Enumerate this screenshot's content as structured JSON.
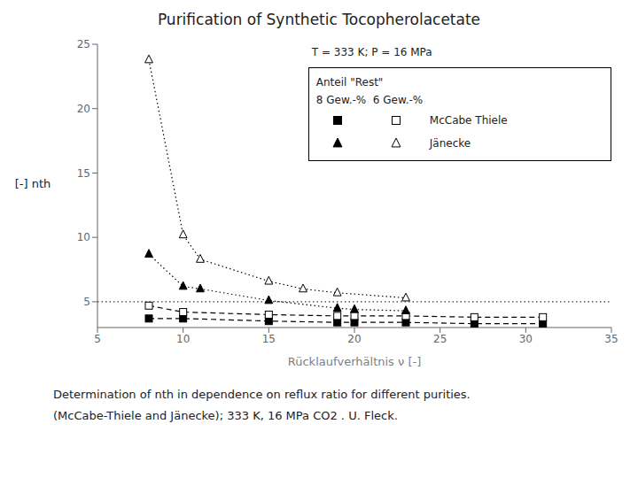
{
  "chart_data": {
    "type": "line",
    "title": "Purification of Synthetic Tocopherolacetate",
    "xlabel": "Rücklaufverhältnis  ν [-]",
    "ylabel": "[-] nth",
    "xlim": [
      5,
      35
    ],
    "xticks": [
      5,
      10,
      15,
      20,
      25,
      30,
      35
    ],
    "ylim": [
      3,
      25
    ],
    "yticks": [
      5,
      10,
      15,
      20,
      25
    ],
    "grid": false,
    "legend": "upper right",
    "legend_title": [
      "Anteil \"Rest\"",
      "8 Gew.-%  6 Gew.-%"
    ],
    "annotations": [
      "T = 333 K; P = 16 MPa"
    ],
    "caption": [
      "Determination of nth in dependence on reflux ratio for different purities.",
      "(McCabe-Thiele and Jänecke); 333 K, 16 MPa CO2 . U. Fleck."
    ],
    "hlines": [
      5.0
    ],
    "series": [
      {
        "name": "McCabe Thiele",
        "color": "black",
        "marker": "filled_square",
        "line_style": "dashed",
        "x": [
          8,
          10,
          15,
          19,
          20,
          23,
          27,
          31
        ],
        "values": [
          3.7,
          3.7,
          3.5,
          3.4,
          3.4,
          3.4,
          3.3,
          3.3
        ]
      },
      {
        "name": "McCabe Thiele",
        "color": "black",
        "marker": "open_square",
        "line_style": "dashed",
        "x": [
          8,
          10,
          15,
          19,
          20,
          23,
          27,
          31
        ],
        "values": [
          4.7,
          4.2,
          4.0,
          3.9,
          3.9,
          3.9,
          3.8,
          3.8
        ]
      },
      {
        "name": "Jänecke",
        "color": "black",
        "marker": "filled_triangle",
        "line_style": "dotted",
        "x": [
          8,
          10,
          11,
          15,
          19,
          20,
          23
        ],
        "values": [
          8.7,
          6.2,
          6.0,
          5.1,
          4.5,
          4.4,
          4.3
        ]
      },
      {
        "name": "Jänecke",
        "color": "black",
        "marker": "open_triangle",
        "line_style": "dotted",
        "x": [
          8,
          10,
          11,
          15,
          17,
          19,
          23
        ],
        "values": [
          23.8,
          10.2,
          8.3,
          6.6,
          6.0,
          5.7,
          5.3
        ]
      }
    ]
  }
}
